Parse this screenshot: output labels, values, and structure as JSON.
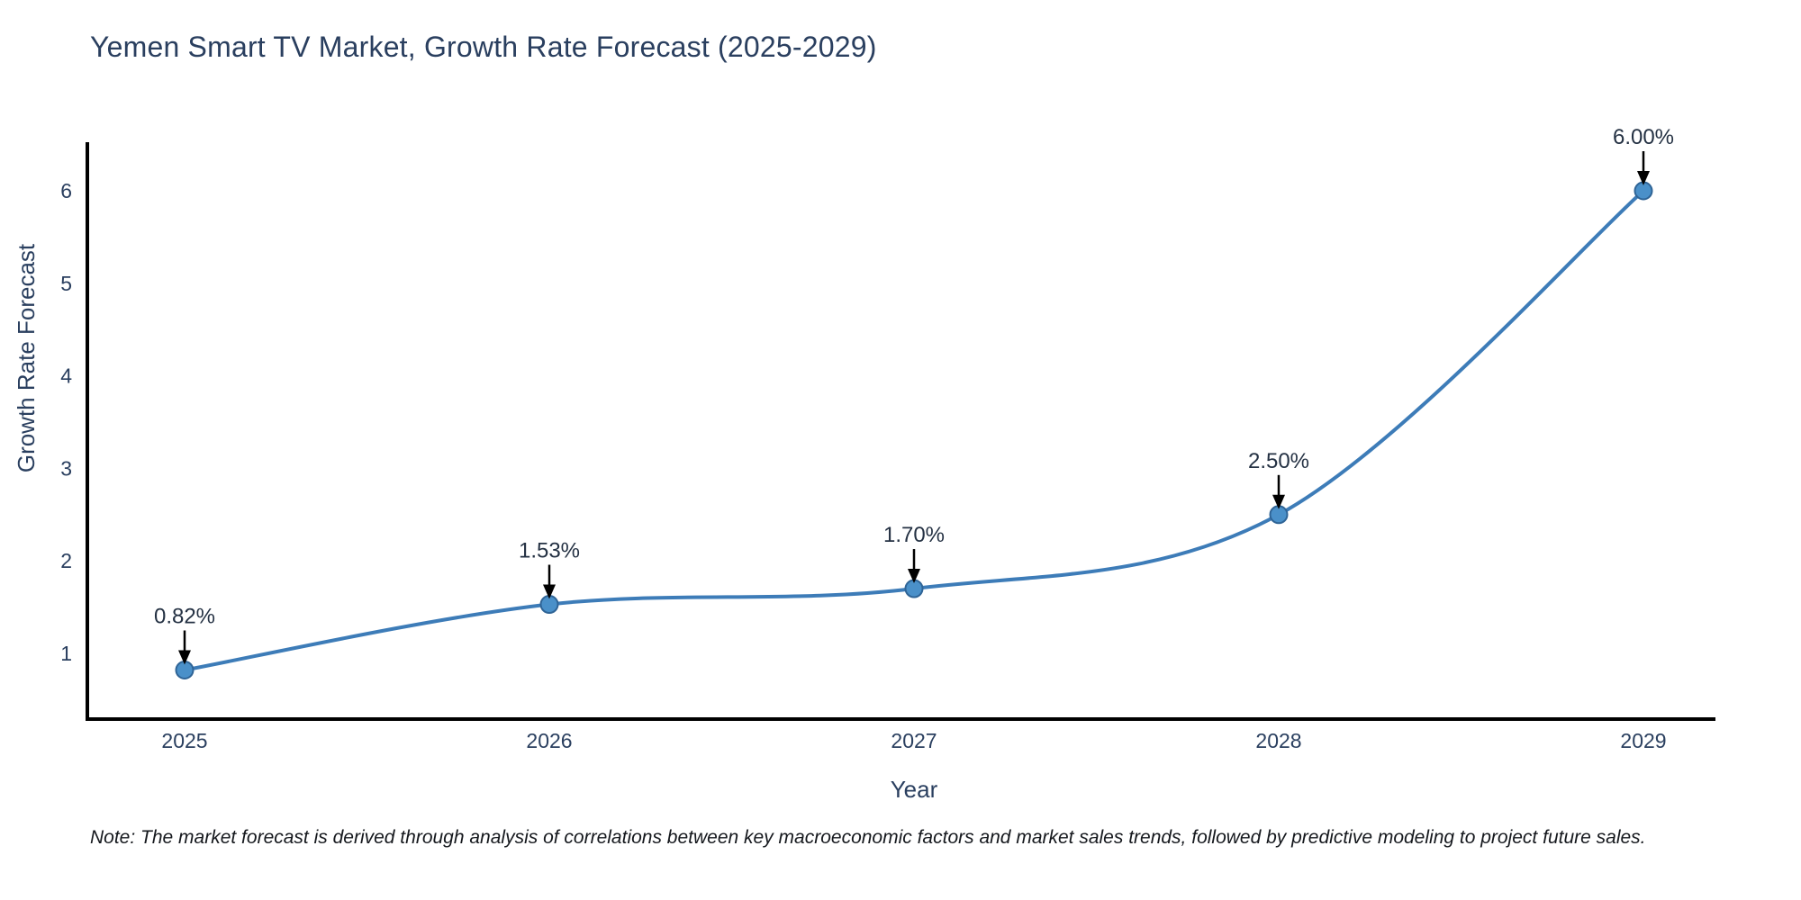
{
  "title": "Yemen Smart TV Market, Growth Rate Forecast (2025-2029)",
  "note": "Note: The market forecast is derived through analysis of correlations between key macroeconomic factors and market sales trends, followed by predictive modeling to project future sales.",
  "chart_data": {
    "type": "line",
    "title": "Yemen Smart TV Market, Growth Rate Forecast (2025-2029)",
    "x": [
      2025,
      2026,
      2027,
      2028,
      2029
    ],
    "x_tick_labels": [
      "2025",
      "2026",
      "2027",
      "2028",
      "2029"
    ],
    "series": [
      {
        "name": "Growth Rate Forecast",
        "values": [
          0.82,
          1.53,
          1.7,
          2.5,
          6.0
        ]
      }
    ],
    "point_labels": [
      "0.82%",
      "1.53%",
      "1.70%",
      "2.50%",
      "6.00%"
    ],
    "xlabel": "Year",
    "ylabel": "Growth Rate Forecast",
    "yticks": [
      1,
      2,
      3,
      4,
      5,
      6
    ],
    "ylim": [
      0.3,
      6.6
    ],
    "line_shape": "spline",
    "grid": false,
    "legend": false,
    "colors": {
      "line": "#3d7cb8",
      "marker_fill": "#4a90c9",
      "marker_edge": "#2f6496",
      "arrow": "#000000",
      "axis": "#000000",
      "text": "#2a3f5f"
    }
  }
}
